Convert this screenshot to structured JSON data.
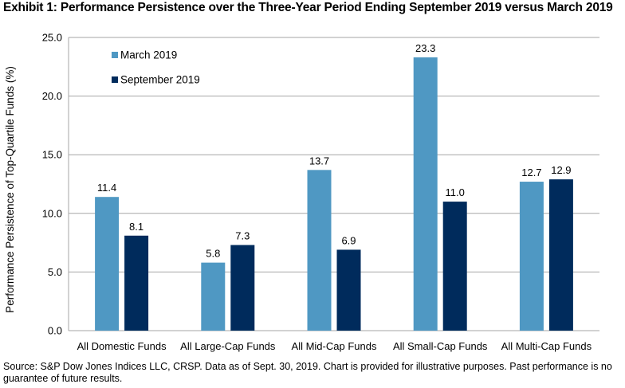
{
  "title": "Exhibit 1: Performance Persistence over the Three-Year Period Ending September 2019 versus March 2019",
  "source": "Source: S&P Dow Jones Indices LLC, CRSP. Data as of Sept. 30, 2019. Chart is provided for illustrative purposes. Past performance is no guarantee of future results.",
  "chart_data": {
    "type": "bar",
    "title": "Exhibit 1: Performance Persistence over the Three-Year Period Ending September 2019 versus March 2019",
    "xlabel": "",
    "ylabel": "Performance Persistence of Top-Quartile Funds (%)",
    "ylim": [
      0,
      25
    ],
    "yticks": [
      "0.0",
      "5.0",
      "10.0",
      "15.0",
      "20.0",
      "25.0"
    ],
    "grid": true,
    "legend": "top-left",
    "categories": [
      "All Domestic Funds",
      "All Large-Cap Funds",
      "All Mid-Cap Funds",
      "All Small-Cap Funds",
      "All Multi-Cap Funds"
    ],
    "series": [
      {
        "name": "March 2019",
        "color": "#4F98C3",
        "values": [
          11.4,
          5.8,
          13.7,
          23.3,
          12.7
        ]
      },
      {
        "name": "September 2019",
        "color": "#002B5C",
        "values": [
          8.1,
          7.3,
          6.9,
          11.0,
          12.9
        ]
      }
    ]
  }
}
